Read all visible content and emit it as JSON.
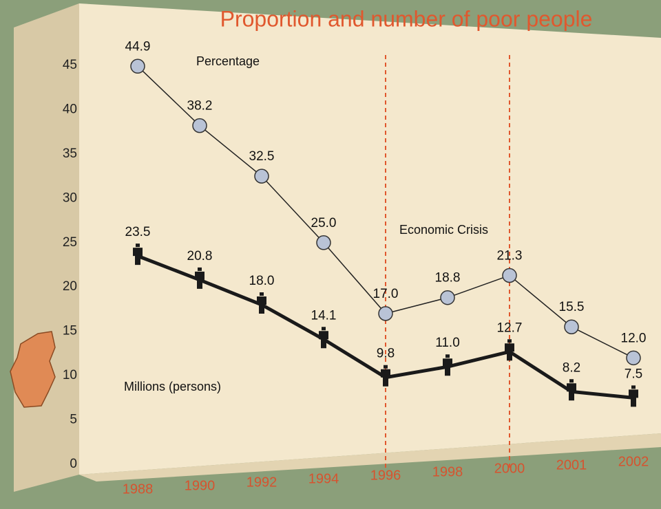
{
  "chart_data": {
    "type": "line",
    "title": "Proportion and number of poor people",
    "categories": [
      "1988",
      "1990",
      "1992",
      "1994",
      "1996",
      "1998",
      "2000",
      "2001",
      "2002"
    ],
    "series": [
      {
        "name": "Percentage",
        "color": "#b9c3d6",
        "marker": "circle",
        "values": [
          44.9,
          38.2,
          32.5,
          25,
          17,
          18.8,
          21.3,
          15.5,
          12
        ],
        "value_labels": [
          "44.9",
          "38.2",
          "32.5",
          "25.0",
          "17.0",
          "18.8",
          "21.3",
          "15.5",
          "12.0"
        ]
      },
      {
        "name": "Millions (persons)",
        "color": "#1a1a1a",
        "marker": "person",
        "values": [
          23.5,
          20.8,
          18,
          14.1,
          9.8,
          11,
          12.7,
          8.2,
          7.5
        ],
        "value_labels": [
          "23.5",
          "20.8",
          "18.0",
          "14.1",
          "9.8",
          "11.0",
          "12.7",
          "8.2",
          "7.5"
        ]
      }
    ],
    "annotation": "Economic Crisis",
    "vlines": [
      "1996",
      "2000"
    ],
    "vline_color": "#e0582e",
    "ylim": [
      0,
      45
    ],
    "yticks": [
      0,
      5,
      10,
      15,
      20,
      25,
      30,
      35,
      40,
      45
    ]
  }
}
